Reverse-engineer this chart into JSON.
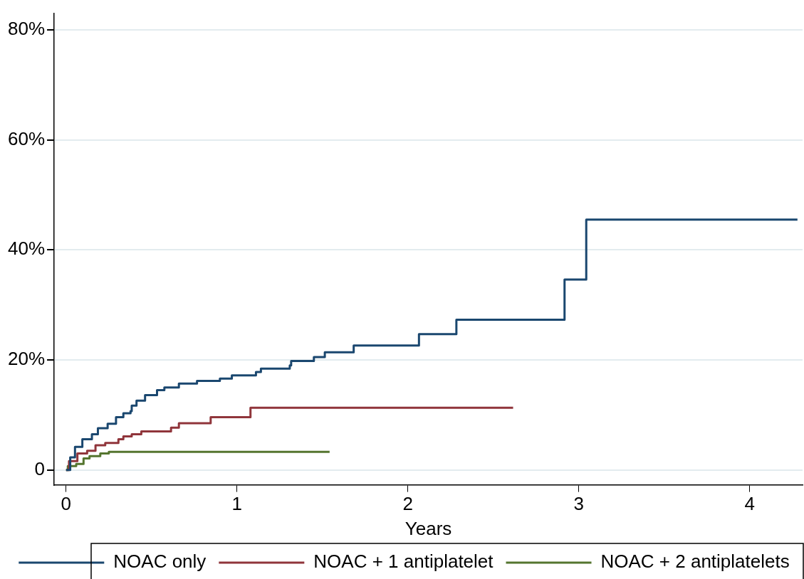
{
  "chart_data": {
    "type": "step",
    "xlabel": "Years",
    "xlim": [
      -0.07,
      4.31
    ],
    "xticks": [
      0,
      1,
      2,
      3,
      4
    ],
    "ylim": [
      -2.7,
      83
    ],
    "yticks": [
      {
        "value": 0,
        "label": "0"
      },
      {
        "value": 20,
        "label": "20%"
      },
      {
        "value": 40,
        "label": "40%"
      },
      {
        "value": 60,
        "label": "60%"
      },
      {
        "value": 80,
        "label": "80%"
      }
    ],
    "grid": "y",
    "legend": "bottom",
    "marker": "none",
    "line_style": "solid",
    "series": [
      {
        "name": "NOAC only",
        "color": "#1a476f",
        "x": [
          0,
          0.024,
          0.052,
          0.095,
          0.151,
          0.186,
          0.243,
          0.292,
          0.335,
          0.377,
          0.384,
          0.412,
          0.462,
          0.532,
          0.575,
          0.66,
          0.766,
          0.9,
          0.97,
          1.111,
          1.14,
          1.309,
          1.317,
          1.45,
          1.514,
          1.683,
          2.065,
          2.284,
          2.917,
          3.044,
          4.28
        ],
        "values": [
          0,
          2.3,
          4.2,
          5.6,
          6.5,
          7.6,
          8.4,
          9.6,
          10.3,
          10.7,
          11.7,
          12.6,
          13.6,
          14.5,
          15,
          15.7,
          16.2,
          16.6,
          17.2,
          17.8,
          18.4,
          19,
          19.8,
          20.5,
          21.4,
          22.6,
          24.7,
          27.3,
          34.6,
          45.5,
          45.5
        ]
      },
      {
        "name": "NOAC + 1 antiplatelet",
        "color": "#90353b",
        "x": [
          0,
          0.017,
          0.066,
          0.123,
          0.172,
          0.229,
          0.306,
          0.335,
          0.384,
          0.44,
          0.614,
          0.66,
          0.846,
          1.079,
          2.616
        ],
        "values": [
          0,
          1.6,
          3,
          3.5,
          4.5,
          4.9,
          5.6,
          6.1,
          6.5,
          7,
          7.7,
          8.5,
          9.6,
          11.3,
          11.3
        ]
      },
      {
        "name": "NOAC + 2 antiplatelets",
        "color": "#55752f",
        "x": [
          0,
          0.01,
          0.059,
          0.102,
          0.137,
          0.2,
          0.25,
          1.542
        ],
        "values": [
          0,
          0.7,
          1.1,
          2.1,
          2.5,
          3,
          3.3,
          3.3
        ]
      }
    ]
  }
}
